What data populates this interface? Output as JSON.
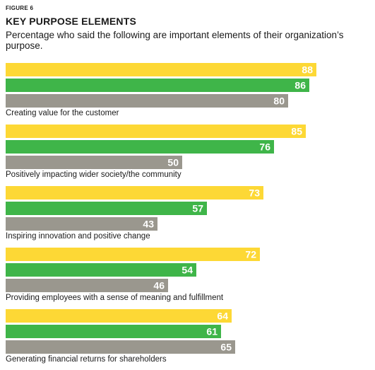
{
  "figure_label": "FIGURE 6",
  "chart_data": {
    "type": "bar",
    "orientation": "horizontal",
    "title": "KEY PURPOSE ELEMENTS",
    "subtitle": "Percentage who said the following are important elements of their organization’s purpose.",
    "categories": [
      "Creating value for the customer",
      "Positively impacting wider society/the community",
      "Inspiring innovation and positive change",
      "Providing employees with a sense of meaning and fulfillment",
      "Generating financial returns for shareholders"
    ],
    "series": [
      {
        "values": [
          88,
          85,
          73,
          72,
          64
        ],
        "color": "#fdd835"
      },
      {
        "values": [
          86,
          76,
          57,
          54,
          61
        ],
        "color": "#3fb549"
      },
      {
        "values": [
          80,
          50,
          43,
          46,
          65
        ],
        "color": "#9a978e"
      }
    ],
    "xlim": [
      0,
      100
    ],
    "grid": false,
    "legend": "none"
  }
}
